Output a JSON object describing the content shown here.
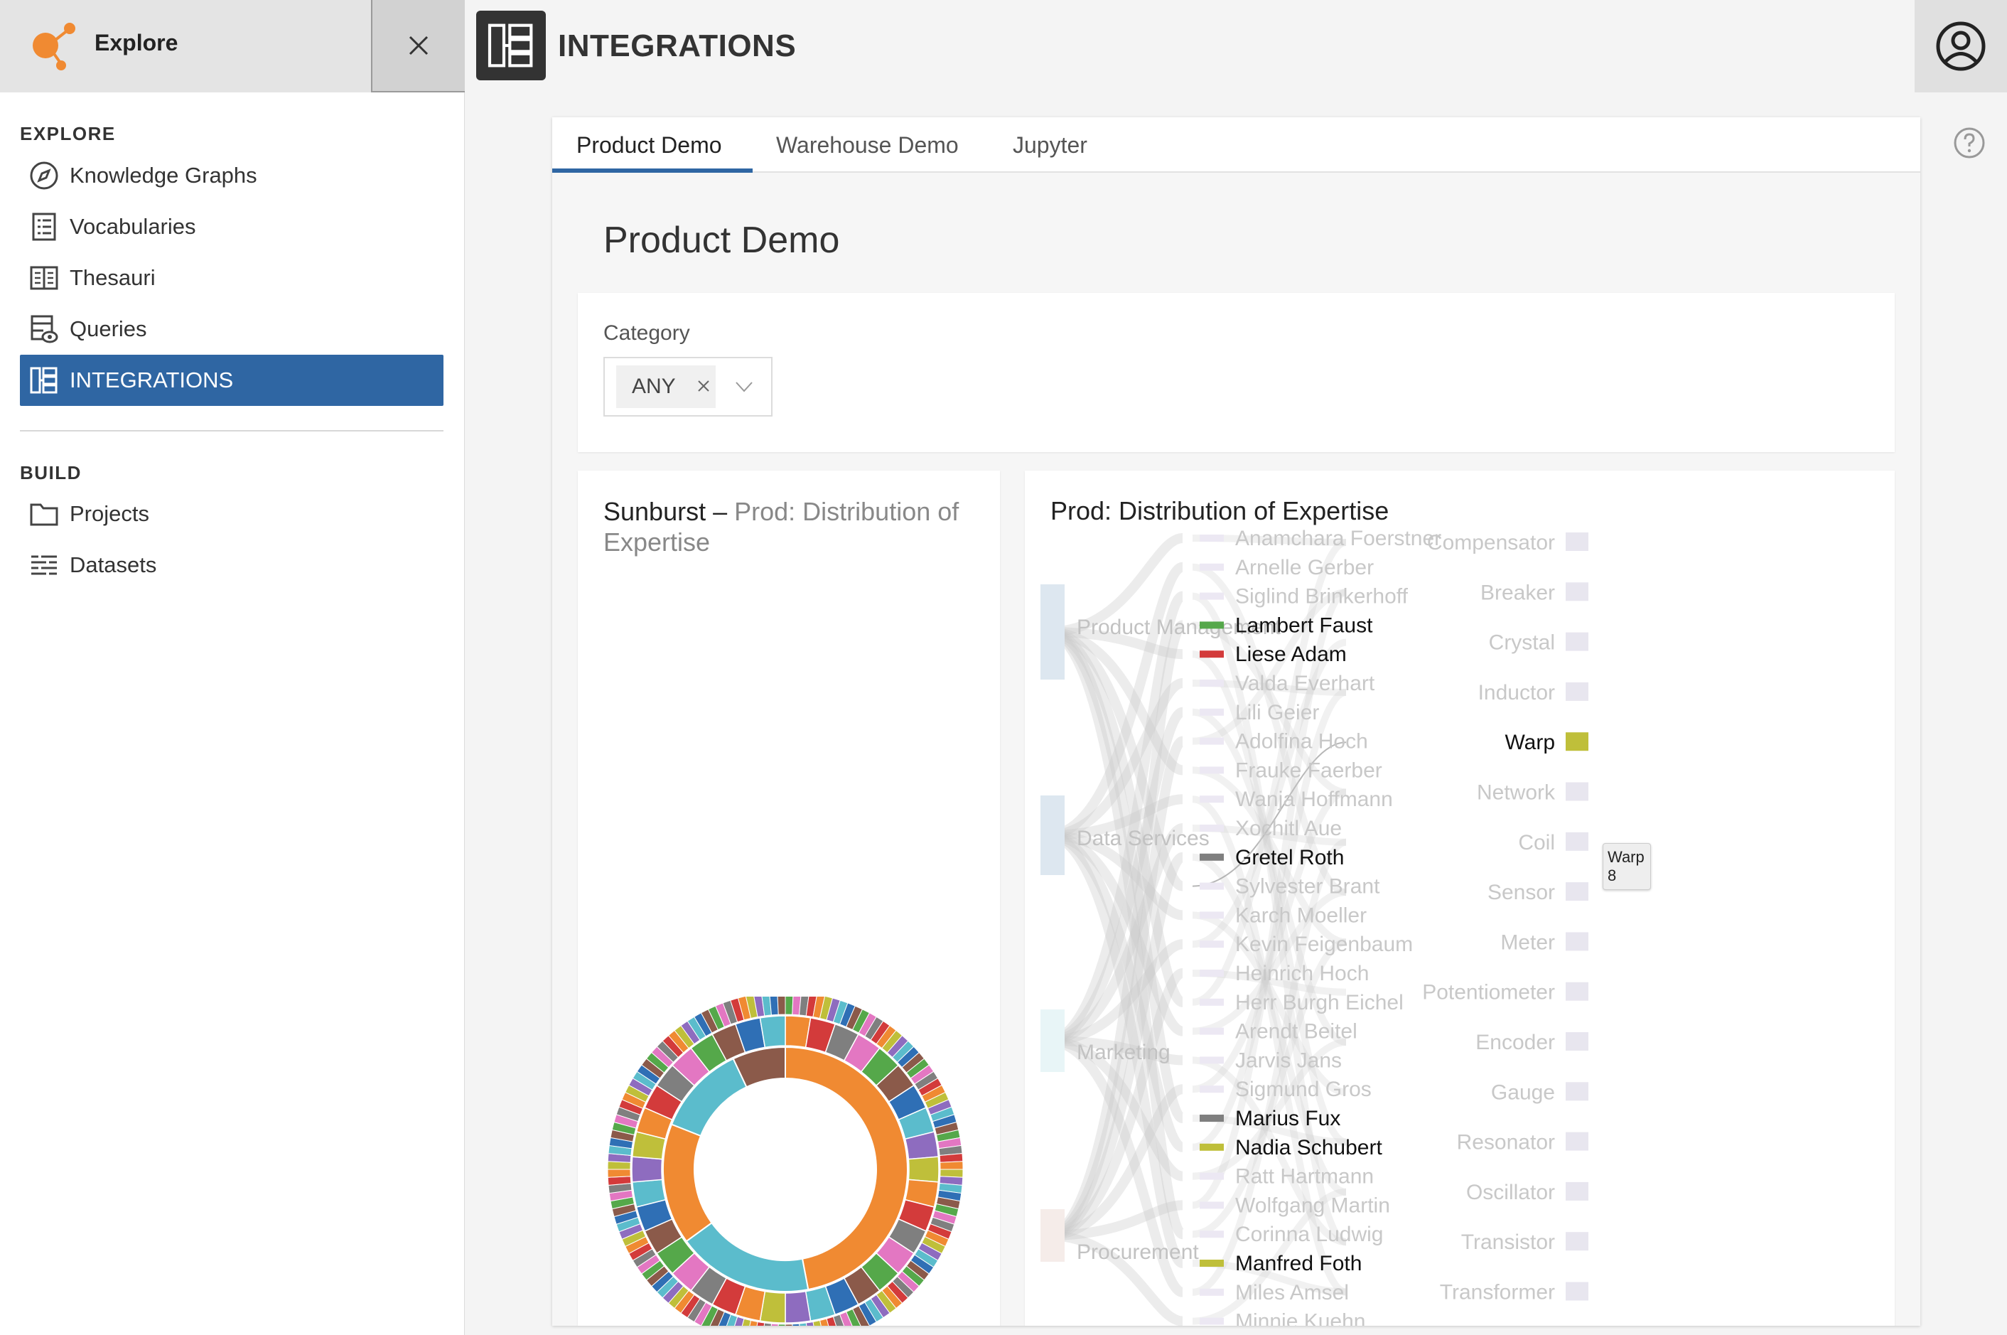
{
  "sidebar": {
    "app_title": "Explore",
    "sections": {
      "explore": "EXPLORE",
      "build": "BUILD"
    },
    "items": [
      {
        "label": "Knowledge Graphs",
        "icon": "compass-icon"
      },
      {
        "label": "Vocabularies",
        "icon": "list-book-icon"
      },
      {
        "label": "Thesauri",
        "icon": "thesaurus-icon"
      },
      {
        "label": "Queries",
        "icon": "query-icon"
      },
      {
        "label": "INTEGRATIONS",
        "icon": "integrations-icon",
        "active": true
      },
      {
        "label": "Projects",
        "icon": "folder-icon"
      },
      {
        "label": "Datasets",
        "icon": "datasets-icon"
      }
    ]
  },
  "header": {
    "title": "INTEGRATIONS"
  },
  "tabs": [
    {
      "label": "Product Demo",
      "active": true
    },
    {
      "label": "Warehouse Demo"
    },
    {
      "label": "Jupyter"
    }
  ],
  "demo": {
    "title": "Product Demo",
    "filter": {
      "label": "Category",
      "selected": "ANY"
    }
  },
  "sunburst_panel": {
    "title_main": "Sunburst",
    "title_dash": " – ",
    "title_sub": "Prod: Distribution of Expertise"
  },
  "sankey_panel": {
    "title": "Prod: Distribution of Expertise",
    "tooltip": {
      "label": "Warp",
      "value": "8"
    }
  },
  "colors": {
    "accent": "#2f66a3",
    "orange": "#f08a32",
    "teal": "#5bbccc",
    "green": "#55a84a",
    "red": "#d33b3b",
    "purple": "#8e6cbf",
    "brown": "#8b5a4a",
    "gray": "#7f7f7f",
    "olive": "#bfbf3a",
    "blue": "#2f6fb5"
  },
  "chart_data": [
    {
      "type": "sankey",
      "title": "Prod: Distribution of Expertise",
      "departments": [
        "Product Management",
        "Data Services",
        "Marketing",
        "Procurement"
      ],
      "people": [
        {
          "name": "Anamchara Foerstner",
          "highlight": false
        },
        {
          "name": "Arnelle Gerber",
          "highlight": false
        },
        {
          "name": "Siglind Brinkerhoff",
          "highlight": false
        },
        {
          "name": "Lambert Faust",
          "highlight": true,
          "color": "#55a84a"
        },
        {
          "name": "Liese Adam",
          "highlight": true,
          "color": "#d33b3b"
        },
        {
          "name": "Valda Everhart",
          "highlight": false
        },
        {
          "name": "Lili Geier",
          "highlight": false
        },
        {
          "name": "Adolfina Hoch",
          "highlight": false
        },
        {
          "name": "Frauke Faerber",
          "highlight": false
        },
        {
          "name": "Wanja Hoffmann",
          "highlight": false
        },
        {
          "name": "Xochitl Aue",
          "highlight": false
        },
        {
          "name": "Gretel Roth",
          "highlight": true,
          "color": "#7f7f7f"
        },
        {
          "name": "Sylvester Brant",
          "highlight": false
        },
        {
          "name": "Karch Moeller",
          "highlight": false
        },
        {
          "name": "Kevin Feigenbaum",
          "highlight": false
        },
        {
          "name": "Heinrich Hoch",
          "highlight": false
        },
        {
          "name": "Herr Burgh Eichel",
          "highlight": false
        },
        {
          "name": "Arendt Beitel",
          "highlight": false
        },
        {
          "name": "Jarvis Jans",
          "highlight": false
        },
        {
          "name": "Sigmund Gros",
          "highlight": false
        },
        {
          "name": "Marius Fux",
          "highlight": true,
          "color": "#7f7f7f"
        },
        {
          "name": "Nadia Schubert",
          "highlight": true,
          "color": "#bfbf3a"
        },
        {
          "name": "Ratt Hartmann",
          "highlight": false
        },
        {
          "name": "Wolfgang Martin",
          "highlight": false
        },
        {
          "name": "Corinna Ludwig",
          "highlight": false
        },
        {
          "name": "Manfred Foth",
          "highlight": true,
          "color": "#bfbf3a"
        },
        {
          "name": "Miles Amsel",
          "highlight": false
        },
        {
          "name": "Minnie Kuehn",
          "highlight": false
        }
      ],
      "products": [
        {
          "name": "Compensator",
          "highlight": false
        },
        {
          "name": "Breaker",
          "highlight": false
        },
        {
          "name": "Crystal",
          "highlight": false
        },
        {
          "name": "Inductor",
          "highlight": false
        },
        {
          "name": "Warp",
          "highlight": true,
          "value": 8
        },
        {
          "name": "Network",
          "highlight": false
        },
        {
          "name": "Coil",
          "highlight": false
        },
        {
          "name": "Sensor",
          "highlight": false
        },
        {
          "name": "Meter",
          "highlight": false
        },
        {
          "name": "Potentiometer",
          "highlight": false
        },
        {
          "name": "Encoder",
          "highlight": false
        },
        {
          "name": "Gauge",
          "highlight": false
        },
        {
          "name": "Resonator",
          "highlight": false
        },
        {
          "name": "Oscillator",
          "highlight": false
        },
        {
          "name": "Transistor",
          "highlight": false
        },
        {
          "name": "Transformer",
          "highlight": false
        }
      ]
    },
    {
      "type": "sunburst",
      "title": "Sunburst – Prod: Distribution of Expertise",
      "inner_ring": [
        {
          "share": 0.47,
          "color": "#f08a32"
        },
        {
          "share": 0.18,
          "color": "#5bbccc"
        },
        {
          "share": 0.16,
          "color": "#f08a32"
        },
        {
          "share": 0.12,
          "color": "#5bbccc"
        },
        {
          "share": 0.07,
          "color": "#8b5a4a"
        }
      ]
    }
  ]
}
